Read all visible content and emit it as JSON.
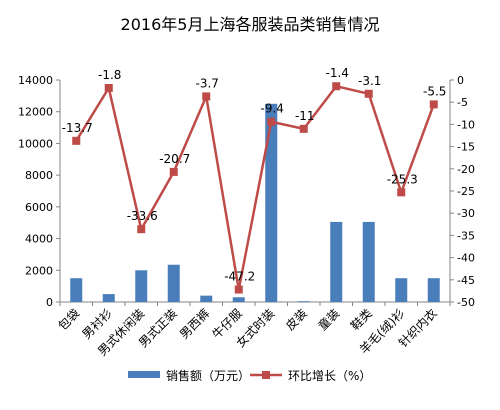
{
  "chart_data": {
    "type": "bar",
    "title": "2016年5月上海各服装品类销售情况",
    "categories": [
      "包袋",
      "男衬衫",
      "男式休闲装",
      "男式正装",
      "男西裤",
      "牛仔服",
      "女式时装",
      "皮装",
      "童装",
      "鞋类",
      "羊毛(绒)衫",
      "针织内衣"
    ],
    "series": [
      {
        "name": "销售额（万元）",
        "type": "bar",
        "axis": "left",
        "color": "#4a7ebb",
        "values": [
          1500,
          500,
          2000,
          2350,
          400,
          300,
          12500,
          50,
          5050,
          5050,
          1500,
          1500
        ]
      },
      {
        "name": "环比增长（%）",
        "type": "line",
        "axis": "right",
        "color": "#be4b48",
        "values": [
          -13.7,
          -1.8,
          -33.6,
          -20.7,
          -3.7,
          -47.2,
          -9.4,
          -11,
          -1.4,
          -3.1,
          -25.3,
          -5.5
        ],
        "labels": [
          "-13.7",
          "-1.8",
          "-33.6",
          "-20.7",
          "-3.7",
          "-47.2",
          "-9.4",
          "-11",
          "-1.4",
          "-3.1",
          "-25.3",
          "-5.5"
        ]
      }
    ],
    "y_left": {
      "min": 0,
      "max": 14000,
      "ticks": [
        0,
        2000,
        4000,
        6000,
        8000,
        10000,
        12000,
        14000
      ]
    },
    "y_right": {
      "min": -50,
      "max": 0,
      "ticks": [
        0,
        -5,
        -10,
        -15,
        -20,
        -25,
        -30,
        -35,
        -40,
        -45,
        -50
      ]
    },
    "legend_position": "bottom",
    "grid": false
  }
}
